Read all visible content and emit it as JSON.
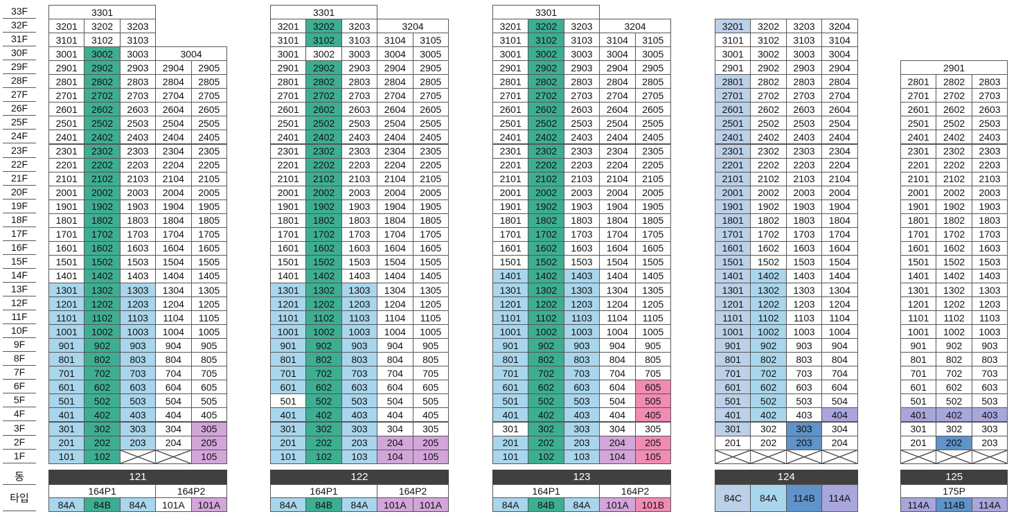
{
  "row_labels": {
    "dong": "동",
    "type": "타입"
  },
  "floors": [
    "33F",
    "32F",
    "31F",
    "30F",
    "29F",
    "28F",
    "27F",
    "26F",
    "25F",
    "24F",
    "23F",
    "22F",
    "21F",
    "20F",
    "19F",
    "18F",
    "17F",
    "16F",
    "15F",
    "14F",
    "13F",
    "12F",
    "11F",
    "10F",
    "9F",
    "8F",
    "7F",
    "6F",
    "5F",
    "4F",
    "3F",
    "2F",
    "1F"
  ],
  "colors": {
    "white": "#ffffff",
    "light_blue": "#a9d6ec",
    "teal": "#3eae92",
    "purple": "#d3a6da",
    "pink": "#f08cb4",
    "lavender": "#a9a6dc",
    "dark_blue": "#5f93c9",
    "pale_blue": "#bcd0e8",
    "dong_bar": "#404040"
  },
  "buildings": [
    {
      "dong": "121",
      "top_rows": [
        {
          "floor": "33F",
          "cells": [
            {
              "label": "3301",
              "span": 3,
              "c": "w"
            }
          ]
        },
        {
          "floor": "32F",
          "cells": [
            {
              "label": "3201",
              "c": "w"
            },
            {
              "label": "3202",
              "c": "w"
            },
            {
              "label": "3203",
              "c": "w"
            }
          ]
        },
        {
          "floor": "31F",
          "cells": [
            {
              "label": "3101",
              "c": "w"
            },
            {
              "label": "3102",
              "c": "w"
            },
            {
              "label": "3103",
              "c": "w"
            }
          ]
        },
        {
          "floor": "30F",
          "cells": [
            {
              "label": "3001",
              "c": "w"
            },
            {
              "label": "3002",
              "c": "g"
            },
            {
              "label": "3003",
              "c": "w"
            },
            {
              "label": "3004",
              "span": 2,
              "c": "w"
            }
          ]
        }
      ],
      "reg_top": 29,
      "reg_bottom": 1,
      "cols": 5,
      "col_color_rules": [
        {
          "col": 2,
          "from": 29,
          "to": 1,
          "c": "g"
        },
        {
          "col": 1,
          "from": 13,
          "to": 1,
          "c": "b"
        },
        {
          "col": 3,
          "from": 13,
          "to": 2,
          "c": "b"
        }
      ],
      "overrides": {
        "305": "p",
        "205": "p",
        "105": "p",
        "103": "x",
        "104": "x"
      },
      "types": {
        "groups": [
          {
            "label": "164P1",
            "span": 3
          },
          {
            "label": "164P2",
            "span": 2
          }
        ],
        "cells": [
          {
            "label": "84A",
            "c": "b"
          },
          {
            "label": "84B",
            "c": "g"
          },
          {
            "label": "84A",
            "c": "b"
          },
          {
            "label": "101A",
            "c": "w"
          },
          {
            "label": "101A",
            "c": "p"
          }
        ]
      }
    },
    {
      "dong": "122",
      "top_rows": [
        {
          "floor": "33F",
          "cells": [
            {
              "label": "3301",
              "span": 3,
              "c": "w"
            }
          ]
        },
        {
          "floor": "32F",
          "cells": [
            {
              "label": "3201",
              "c": "w"
            },
            {
              "label": "3202",
              "c": "g"
            },
            {
              "label": "3203",
              "c": "w"
            },
            {
              "label": "3204",
              "span": 2,
              "c": "w"
            }
          ]
        },
        {
          "floor": "31F",
          "cells": [
            {
              "label": "3101",
              "c": "w"
            },
            {
              "label": "3102",
              "c": "g"
            },
            {
              "label": "3103",
              "c": "w"
            },
            {
              "label": "3104",
              "c": "w"
            },
            {
              "label": "3105",
              "c": "w"
            }
          ]
        },
        {
          "floor": "30F",
          "cells": [
            {
              "label": "3001",
              "c": "w"
            },
            {
              "label": "3002",
              "c": "w"
            },
            {
              "label": "3003",
              "c": "w"
            },
            {
              "label": "3004",
              "c": "w"
            },
            {
              "label": "3005",
              "c": "w"
            }
          ]
        }
      ],
      "reg_top": 29,
      "reg_bottom": 1,
      "cols": 5,
      "col_color_rules": [
        {
          "col": 2,
          "from": 29,
          "to": 1,
          "c": "g"
        },
        {
          "col": 1,
          "from": 13,
          "to": 1,
          "c": "b"
        },
        {
          "col": 3,
          "from": 13,
          "to": 1,
          "c": "b"
        }
      ],
      "overrides": {
        "501": "w",
        "204": "p",
        "205": "p",
        "104": "p",
        "105": "p"
      },
      "types": {
        "groups": [
          {
            "label": "164P1",
            "span": 3
          },
          {
            "label": "164P2",
            "span": 2
          }
        ],
        "cells": [
          {
            "label": "84A",
            "c": "b"
          },
          {
            "label": "84B",
            "c": "g"
          },
          {
            "label": "84A",
            "c": "b"
          },
          {
            "label": "101A",
            "c": "p"
          },
          {
            "label": "101A",
            "c": "p"
          }
        ]
      }
    },
    {
      "dong": "123",
      "top_rows": [
        {
          "floor": "33F",
          "cells": [
            {
              "label": "3301",
              "span": 3,
              "c": "w"
            }
          ]
        },
        {
          "floor": "32F",
          "cells": [
            {
              "label": "3201",
              "c": "w"
            },
            {
              "label": "3202",
              "c": "g"
            },
            {
              "label": "3203",
              "c": "w"
            },
            {
              "label": "3204",
              "span": 2,
              "c": "w"
            }
          ]
        },
        {
          "floor": "31F",
          "cells": [
            {
              "label": "3101",
              "c": "w"
            },
            {
              "label": "3102",
              "c": "g"
            },
            {
              "label": "3103",
              "c": "w"
            },
            {
              "label": "3104",
              "c": "w"
            },
            {
              "label": "3105",
              "c": "w"
            }
          ]
        },
        {
          "floor": "30F",
          "cells": [
            {
              "label": "3001",
              "c": "w"
            },
            {
              "label": "3002",
              "c": "g"
            },
            {
              "label": "3003",
              "c": "w"
            },
            {
              "label": "3004",
              "c": "w"
            },
            {
              "label": "3005",
              "c": "w"
            }
          ]
        }
      ],
      "reg_top": 29,
      "reg_bottom": 1,
      "cols": 5,
      "col_color_rules": [
        {
          "col": 2,
          "from": 29,
          "to": 1,
          "c": "g"
        },
        {
          "col": 1,
          "from": 14,
          "to": 4,
          "c": "b"
        },
        {
          "col": 1,
          "from": 2,
          "to": 1,
          "c": "b"
        },
        {
          "col": 3,
          "from": 14,
          "to": 1,
          "c": "b"
        }
      ],
      "overrides": {
        "605": "k",
        "505": "k",
        "405": "k",
        "204": "p",
        "205": "k",
        "104": "p",
        "105": "k"
      },
      "types": {
        "groups": [
          {
            "label": "164P1",
            "span": 3
          },
          {
            "label": "164P2",
            "span": 2
          }
        ],
        "cells": [
          {
            "label": "84A",
            "c": "b"
          },
          {
            "label": "84B",
            "c": "g"
          },
          {
            "label": "84A",
            "c": "b"
          },
          {
            "label": "101A",
            "c": "p"
          },
          {
            "label": "101B",
            "c": "k"
          }
        ]
      }
    },
    {
      "dong": "124",
      "top_rows": [
        {
          "floor": "32F",
          "cells": [
            {
              "label": "3201",
              "c": "l"
            },
            {
              "label": "3202",
              "c": "w"
            },
            {
              "label": "3203",
              "c": "w"
            },
            {
              "label": "3204",
              "c": "w"
            }
          ]
        },
        {
          "floor": "31F",
          "cells": [
            {
              "label": "3101",
              "c": "w"
            },
            {
              "label": "3102",
              "c": "w"
            },
            {
              "label": "3103",
              "c": "w"
            },
            {
              "label": "3104",
              "c": "w"
            }
          ]
        },
        {
          "floor": "30F",
          "cells": [
            {
              "label": "3001",
              "c": "w"
            },
            {
              "label": "3002",
              "c": "w"
            },
            {
              "label": "3003",
              "c": "w"
            },
            {
              "label": "3004",
              "c": "w"
            }
          ]
        }
      ],
      "reg_top": 29,
      "reg_bottom": 2,
      "cols": 4,
      "col_color_rules": [
        {
          "col": 1,
          "from": 28,
          "to": 3,
          "c": "l"
        },
        {
          "col": 2,
          "from": 14,
          "to": 4,
          "c": "b"
        }
      ],
      "overrides": {
        "404": "v",
        "303": "d",
        "203": "d"
      },
      "empty_bottom": {
        "floor": "1F",
        "count": 4
      },
      "types": {
        "groups": [],
        "cells": [
          {
            "label": "84C",
            "c": "l"
          },
          {
            "label": "84A",
            "c": "b"
          },
          {
            "label": "114B",
            "c": "d"
          },
          {
            "label": "114A",
            "c": "v"
          }
        ]
      }
    },
    {
      "dong": "125",
      "top_rows": [
        {
          "floor": "29F",
          "cells": [
            {
              "label": "2901",
              "span": 3,
              "c": "w"
            }
          ]
        }
      ],
      "reg_top": 28,
      "reg_bottom": 2,
      "cols": 3,
      "col_color_rules": [],
      "overrides": {
        "401": "v",
        "402": "v",
        "403": "v",
        "202": "d"
      },
      "empty_bottom": {
        "floor": "1F",
        "count": 3
      },
      "types": {
        "groups": [
          {
            "label": "175P",
            "span": 3
          }
        ],
        "cells": [
          {
            "label": "114A",
            "c": "v"
          },
          {
            "label": "114B",
            "c": "d"
          },
          {
            "label": "114A",
            "c": "v"
          }
        ]
      }
    }
  ]
}
